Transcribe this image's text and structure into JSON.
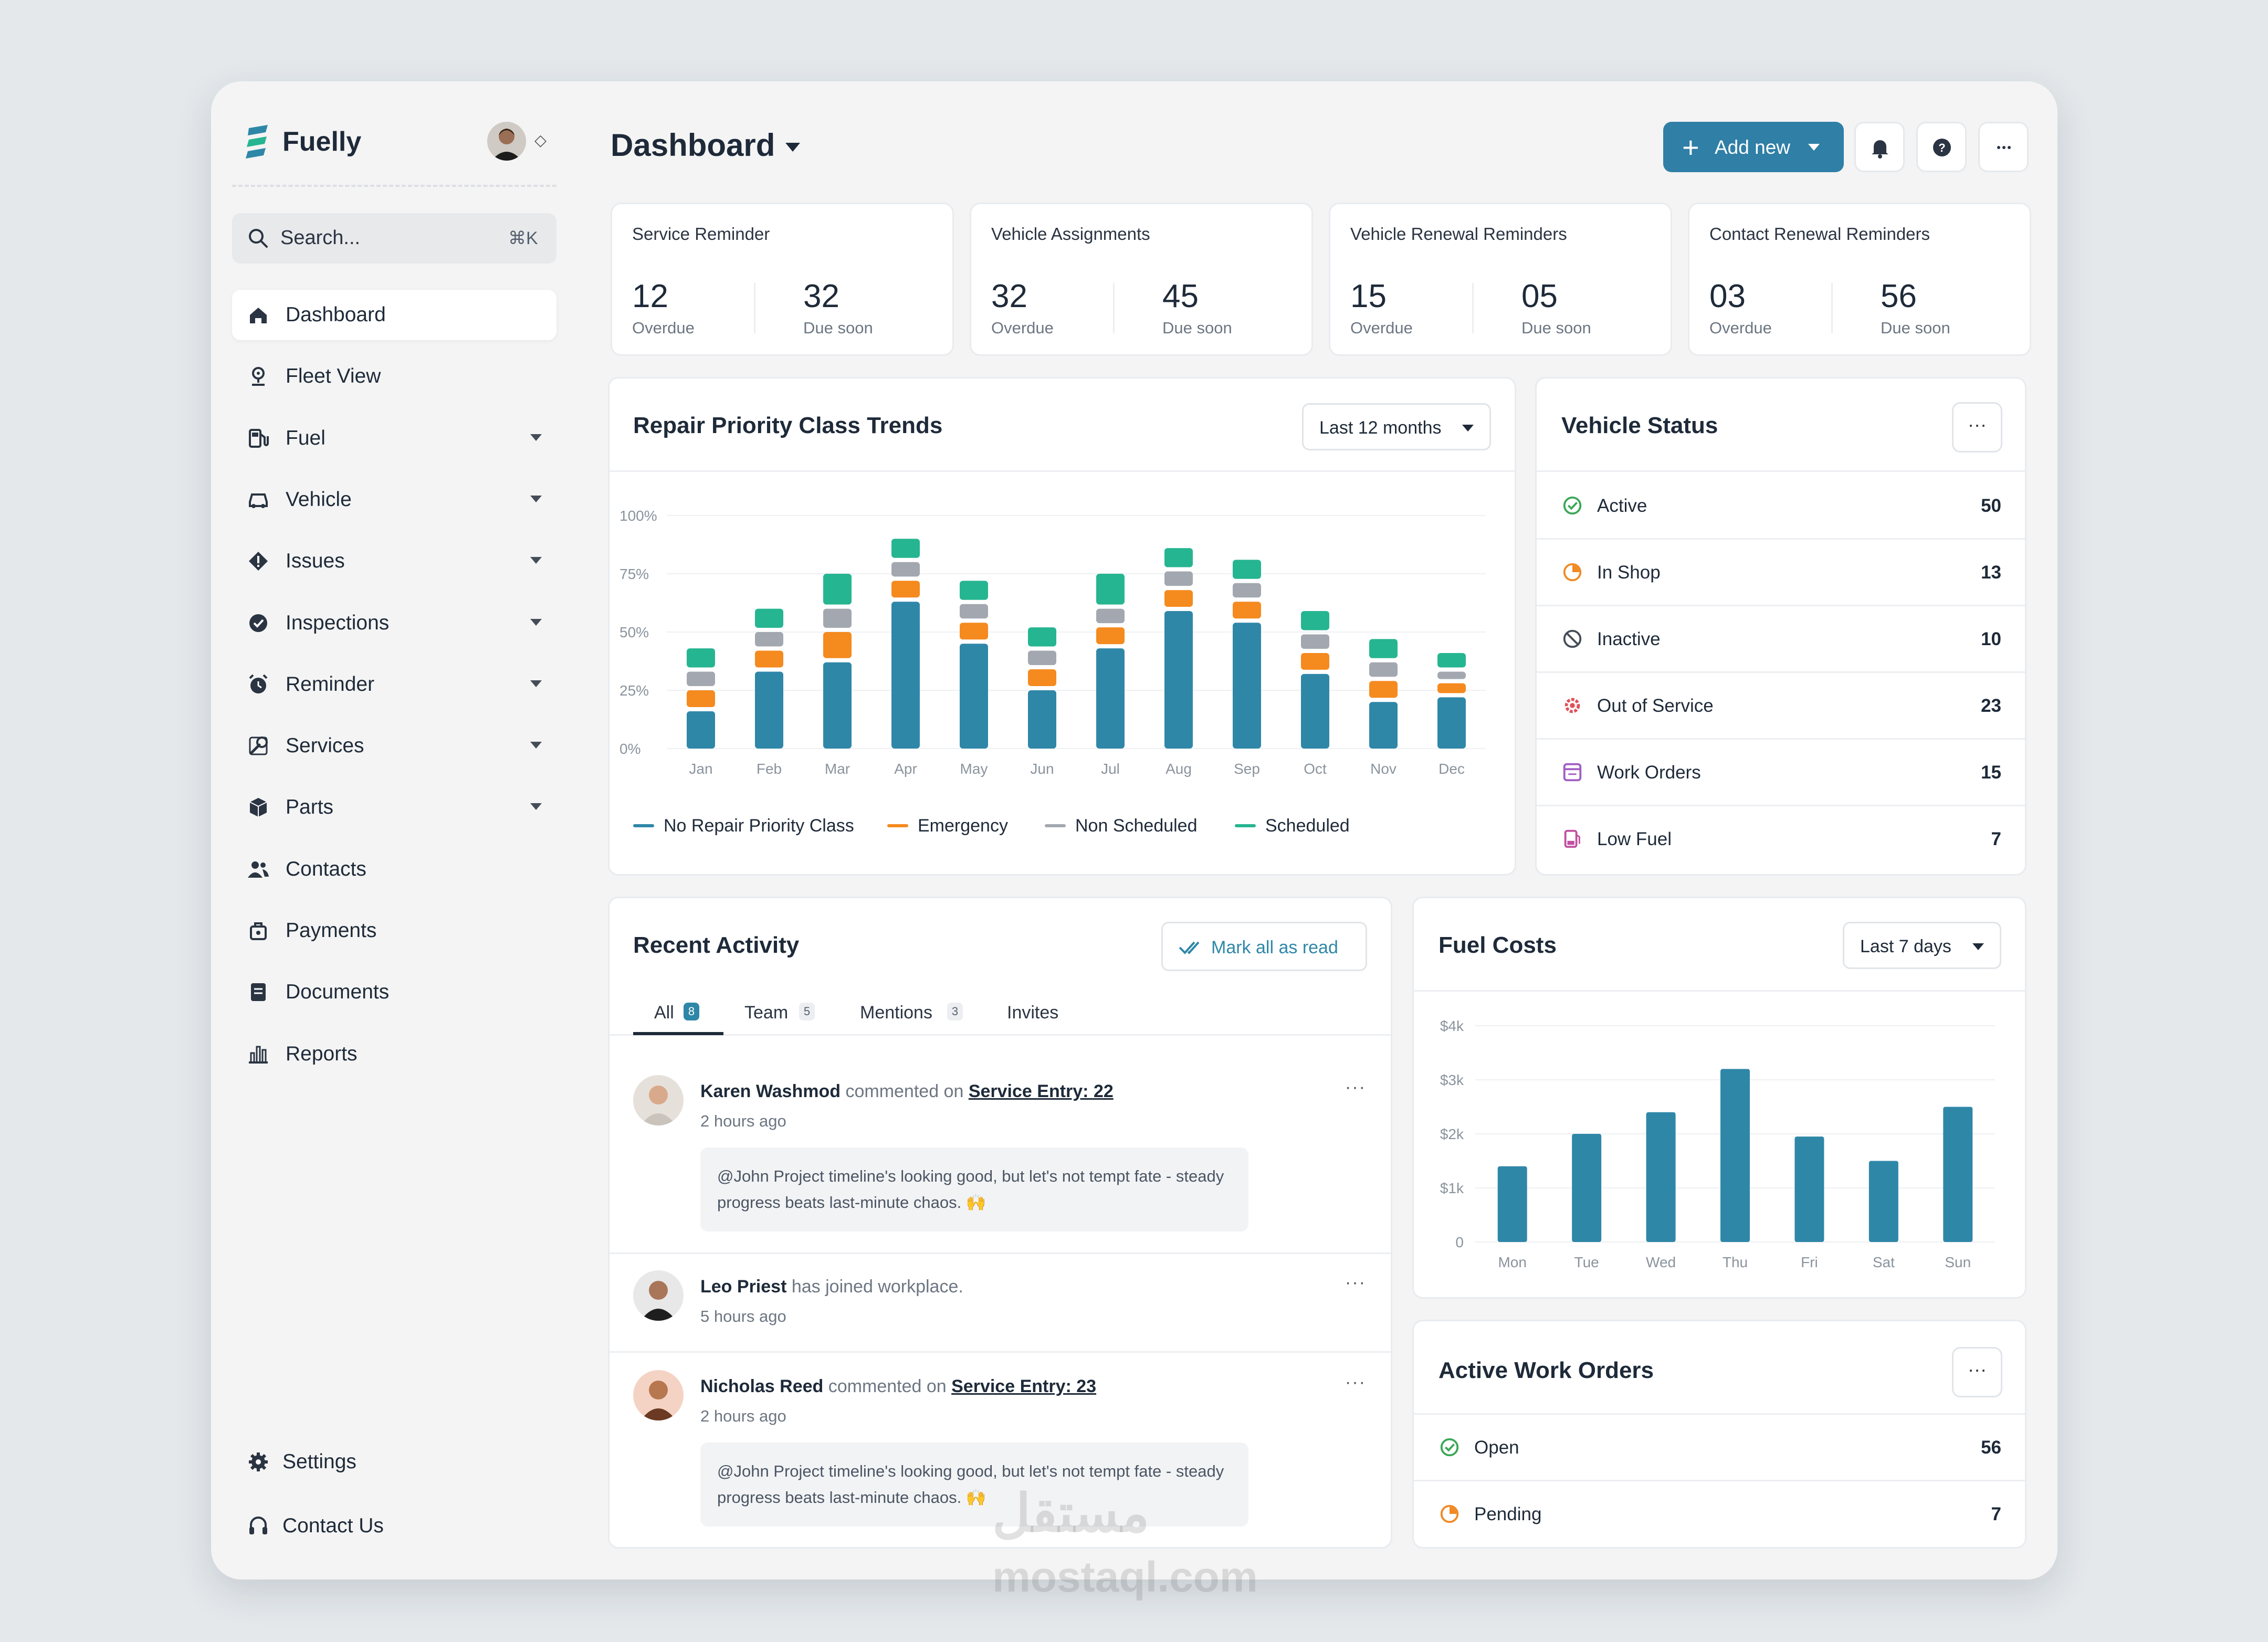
{
  "app": {
    "name": "Fuelly"
  },
  "search": {
    "placeholder": "Search...",
    "shortcut": "⌘K"
  },
  "sidebar": {
    "items": [
      {
        "label": "Dashboard",
        "icon": "home-icon",
        "expandable": false,
        "active": true
      },
      {
        "label": "Fleet View",
        "icon": "map-pin-icon",
        "expandable": false
      },
      {
        "label": "Fuel",
        "icon": "fuel-pump-icon",
        "expandable": true
      },
      {
        "label": "Vehicle",
        "icon": "car-icon",
        "expandable": true
      },
      {
        "label": "Issues",
        "icon": "issues-icon",
        "expandable": true
      },
      {
        "label": "Inspections",
        "icon": "check-circle-icon",
        "expandable": true
      },
      {
        "label": "Reminder",
        "icon": "alarm-icon",
        "expandable": true
      },
      {
        "label": "Services",
        "icon": "services-icon",
        "expandable": true
      },
      {
        "label": "Parts",
        "icon": "box-icon",
        "expandable": true
      },
      {
        "label": "Contacts",
        "icon": "users-icon",
        "expandable": false
      },
      {
        "label": "Payments",
        "icon": "payments-icon",
        "expandable": false
      },
      {
        "label": "Documents",
        "icon": "document-icon",
        "expandable": false
      },
      {
        "label": "Reports",
        "icon": "reports-icon",
        "expandable": false
      }
    ],
    "footer": [
      {
        "label": "Settings",
        "icon": "gear-icon"
      },
      {
        "label": "Contact Us",
        "icon": "headset-icon"
      }
    ]
  },
  "header": {
    "title": "Dashboard",
    "add_label": "Add new"
  },
  "stats": [
    {
      "title": "Service Reminder",
      "overdue": "12",
      "overdue_label": "Overdue",
      "soon": "32",
      "soon_label": "Due soon"
    },
    {
      "title": "Vehicle Assignments",
      "overdue": "32",
      "overdue_label": "Overdue",
      "soon": "45",
      "soon_label": "Due soon"
    },
    {
      "title": "Vehicle Renewal Reminders",
      "overdue": "15",
      "overdue_label": "Overdue",
      "soon": "05",
      "soon_label": "Due soon"
    },
    {
      "title": "Contact Renewal Reminders",
      "overdue": "03",
      "overdue_label": "Overdue",
      "soon": "56",
      "soon_label": "Due soon"
    }
  ],
  "repair": {
    "title": "Repair Priority Class Trends",
    "range": "Last 12 months"
  },
  "vehicle_status": {
    "title": "Vehicle Status",
    "rows": [
      {
        "label": "Active",
        "value": "50",
        "icon": "check-circle-icon",
        "color": "#3aa757"
      },
      {
        "label": "In Shop",
        "value": "13",
        "icon": "clock-icon",
        "color": "#f08a24"
      },
      {
        "label": "Inactive",
        "value": "10",
        "icon": "ban-icon",
        "color": "#444d58"
      },
      {
        "label": "Out of Service",
        "value": "23",
        "icon": "gear-alert-icon",
        "color": "#e0525a"
      },
      {
        "label": "Work Orders",
        "value": "15",
        "icon": "clipboard-icon",
        "color": "#a05cc4"
      },
      {
        "label": "Low Fuel",
        "value": "7",
        "icon": "fuel-low-icon",
        "color": "#c04fa0"
      }
    ]
  },
  "activity": {
    "title": "Recent Activity",
    "mark_read": "Mark all as read",
    "tabs": [
      {
        "label": "All",
        "count": "8"
      },
      {
        "label": "Team",
        "count": "5"
      },
      {
        "label": "Mentions",
        "count": "3"
      },
      {
        "label": "Invites",
        "count": ""
      }
    ],
    "items": [
      {
        "name": "Karen Washmod",
        "action": "commented on",
        "target": "Service Entry: 22",
        "time": "2 hours ago",
        "comment": "@John Project timeline's looking good, but let's not tempt fate - steady progress beats last-minute chaos. 🙌"
      },
      {
        "name": "Leo Priest",
        "action": "has joined workplace.",
        "target": "",
        "time": "5 hours ago",
        "comment": ""
      },
      {
        "name": "Nicholas Reed",
        "action": "commented on",
        "target": "Service Entry: 23",
        "time": "2 hours ago",
        "comment": "@John Project timeline's looking good, but let's not tempt fate - steady progress beats last-minute chaos. 🙌"
      }
    ]
  },
  "fuel": {
    "title": "Fuel Costs",
    "range": "Last 7 days"
  },
  "work_orders": {
    "title": "Active Work Orders",
    "rows": [
      {
        "label": "Open",
        "value": "56",
        "icon": "check-circle-icon",
        "color": "#3aa757"
      },
      {
        "label": "Pending",
        "value": "7",
        "icon": "clock-icon",
        "color": "#f08a24"
      }
    ]
  },
  "watermark": "مستقل mostaql.com",
  "colors": {
    "primary": "#2f7fa6",
    "teal": "#26b591",
    "orange": "#f58a1f",
    "gray": "#a3a8b0",
    "blue": "#2f87a8"
  },
  "chart_data": [
    {
      "type": "bar",
      "title": "Repair Priority Class Trends",
      "stacked": true,
      "categories": [
        "Jan",
        "Feb",
        "Mar",
        "Apr",
        "May",
        "Jun",
        "Jul",
        "Aug",
        "Sep",
        "Oct",
        "Nov",
        "Dec"
      ],
      "yticks": [
        "100%",
        "75%",
        "50%",
        "25%",
        "0%"
      ],
      "ylim": [
        0,
        100
      ],
      "series": [
        {
          "name": "No Repair Priority Class",
          "color": "#2f87a8",
          "values": [
            16,
            33,
            37,
            63,
            45,
            25,
            43,
            59,
            54,
            32,
            20,
            22
          ]
        },
        {
          "name": "Emergency",
          "color": "#f58a1f",
          "values": [
            9,
            9,
            13,
            9,
            9,
            9,
            9,
            9,
            9,
            9,
            9,
            6
          ]
        },
        {
          "name": "Non Scheduled",
          "color": "#a3a8b0",
          "values": [
            8,
            8,
            10,
            8,
            8,
            8,
            8,
            8,
            8,
            8,
            8,
            5
          ]
        },
        {
          "name": "Scheduled",
          "color": "#26b591",
          "values": [
            10,
            10,
            15,
            10,
            10,
            10,
            15,
            10,
            10,
            10,
            10,
            8
          ]
        }
      ],
      "legend": "bottom-left"
    },
    {
      "type": "bar",
      "title": "Fuel Costs",
      "categories": [
        "Mon",
        "Tue",
        "Wed",
        "Thu",
        "Fri",
        "Sat",
        "Sun"
      ],
      "yticks": [
        "$4k",
        "$3k",
        "$2k",
        "$1k",
        "0"
      ],
      "ylim": [
        0,
        4000
      ],
      "series": [
        {
          "name": "",
          "color": "#2f87a8",
          "values": [
            1400,
            2000,
            2400,
            3200,
            1950,
            1500,
            2500
          ]
        }
      ]
    }
  ]
}
